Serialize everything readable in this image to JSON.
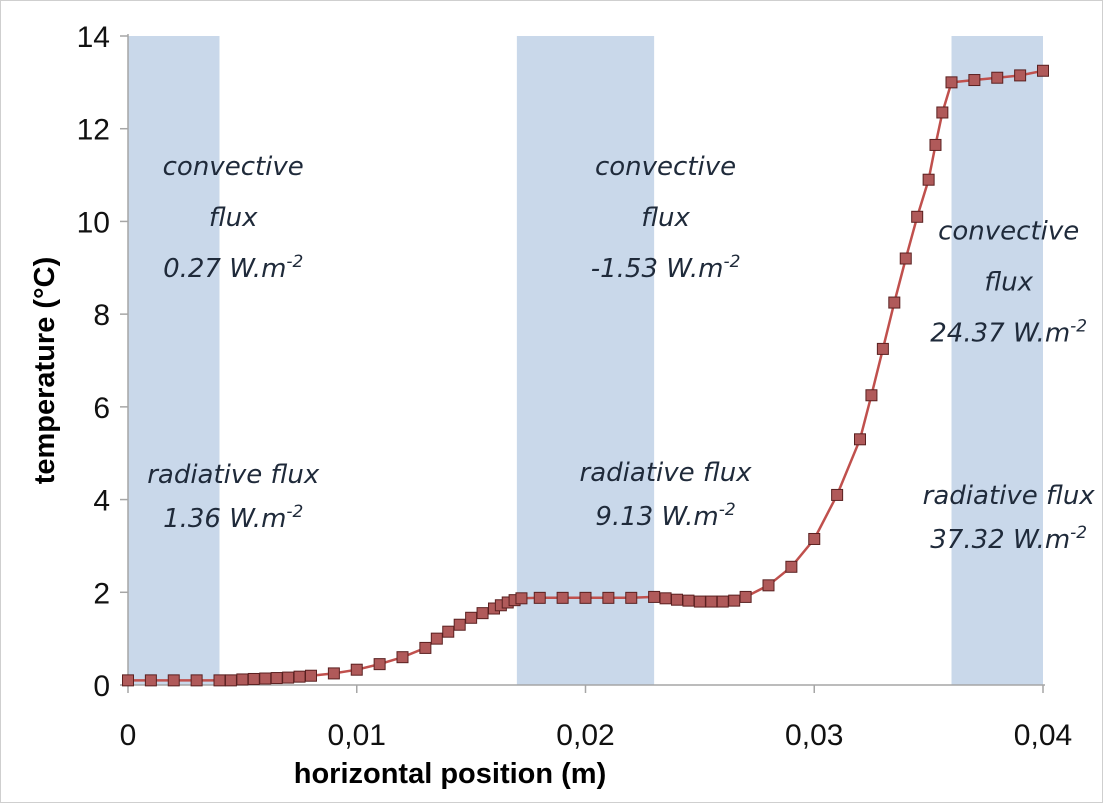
{
  "chart_data": {
    "type": "scatter",
    "xlabel": "horizontal position (m)",
    "ylabel": "temperature (°C)",
    "xlim": [
      0,
      0.04
    ],
    "ylim": [
      0,
      14
    ],
    "x_ticks": [
      0,
      0.01,
      0.02,
      0.03,
      0.04
    ],
    "x_tick_labels": [
      "0",
      "0,01",
      "0,02",
      "0,03",
      "0,04"
    ],
    "y_ticks": [
      0,
      2,
      4,
      6,
      8,
      10,
      12,
      14
    ],
    "y_tick_labels": [
      "0",
      "2",
      "4",
      "6",
      "8",
      "10",
      "12",
      "14"
    ],
    "grid": false,
    "shaded_bands": [
      {
        "x0": 0.0,
        "x1": 0.004
      },
      {
        "x0": 0.017,
        "x1": 0.023
      },
      {
        "x0": 0.036,
        "x1": 0.04
      }
    ],
    "colors": {
      "band": "#c9d8ea",
      "line": "#c0504d",
      "marker_fill": "#b05a5a",
      "marker_edge": "#5a2020",
      "axis": "#a6a6a6"
    },
    "annotations": [
      {
        "lines": [
          "convective",
          "flux",
          "0.27 W.m|-2"
        ],
        "anchor_x": 0.0046,
        "line_y": [
          11.2,
          10.1,
          9.0
        ]
      },
      {
        "lines": [
          "convective",
          "flux",
          "-1.53 W.m|-2"
        ],
        "anchor_x": 0.0235,
        "line_y": [
          11.2,
          10.1,
          9.0
        ]
      },
      {
        "lines": [
          "convective",
          "flux",
          "24.37 W.m|-2"
        ],
        "anchor_x": 0.0385,
        "line_y": [
          9.8,
          8.7,
          7.6
        ]
      },
      {
        "lines": [
          "radiative flux",
          "1.36 W.m|-2"
        ],
        "anchor_x": 0.0046,
        "line_y": [
          4.55,
          3.6
        ]
      },
      {
        "lines": [
          "radiative flux",
          "9.13 W.m|-2"
        ],
        "anchor_x": 0.0235,
        "line_y": [
          4.6,
          3.65
        ]
      },
      {
        "lines": [
          "radiative flux",
          "37.32 W.m|-2"
        ],
        "anchor_x": 0.0385,
        "line_y": [
          4.1,
          3.15
        ]
      }
    ],
    "series": [
      {
        "x": [
          0,
          0.001,
          0.002,
          0.003,
          0.004,
          0.0045,
          0.005,
          0.0055,
          0.006,
          0.0065,
          0.007,
          0.0075,
          0.008,
          0.009,
          0.01,
          0.011,
          0.012,
          0.013,
          0.0135,
          0.014,
          0.0145,
          0.015,
          0.0155,
          0.016,
          0.0163,
          0.0166,
          0.0169,
          0.0172,
          0.018,
          0.019,
          0.02,
          0.021,
          0.022,
          0.023,
          0.0235,
          0.024,
          0.0245,
          0.025,
          0.0255,
          0.026,
          0.0265,
          0.027,
          0.028,
          0.029,
          0.03,
          0.031,
          0.032,
          0.0325,
          0.033,
          0.0335,
          0.034,
          0.0345,
          0.035,
          0.0353,
          0.0356,
          0.036,
          0.037,
          0.038,
          0.039,
          0.04
        ],
        "y": [
          0.1,
          0.1,
          0.1,
          0.1,
          0.1,
          0.1,
          0.12,
          0.13,
          0.14,
          0.15,
          0.16,
          0.18,
          0.2,
          0.25,
          0.33,
          0.45,
          0.6,
          0.8,
          1.0,
          1.15,
          1.3,
          1.45,
          1.55,
          1.65,
          1.72,
          1.78,
          1.83,
          1.87,
          1.88,
          1.88,
          1.88,
          1.88,
          1.88,
          1.9,
          1.87,
          1.84,
          1.82,
          1.8,
          1.8,
          1.8,
          1.82,
          1.9,
          2.15,
          2.55,
          3.15,
          4.1,
          5.3,
          6.25,
          7.25,
          8.25,
          9.2,
          10.1,
          10.9,
          11.65,
          12.35,
          13.0,
          13.05,
          13.1,
          13.15,
          13.25
        ]
      }
    ]
  }
}
